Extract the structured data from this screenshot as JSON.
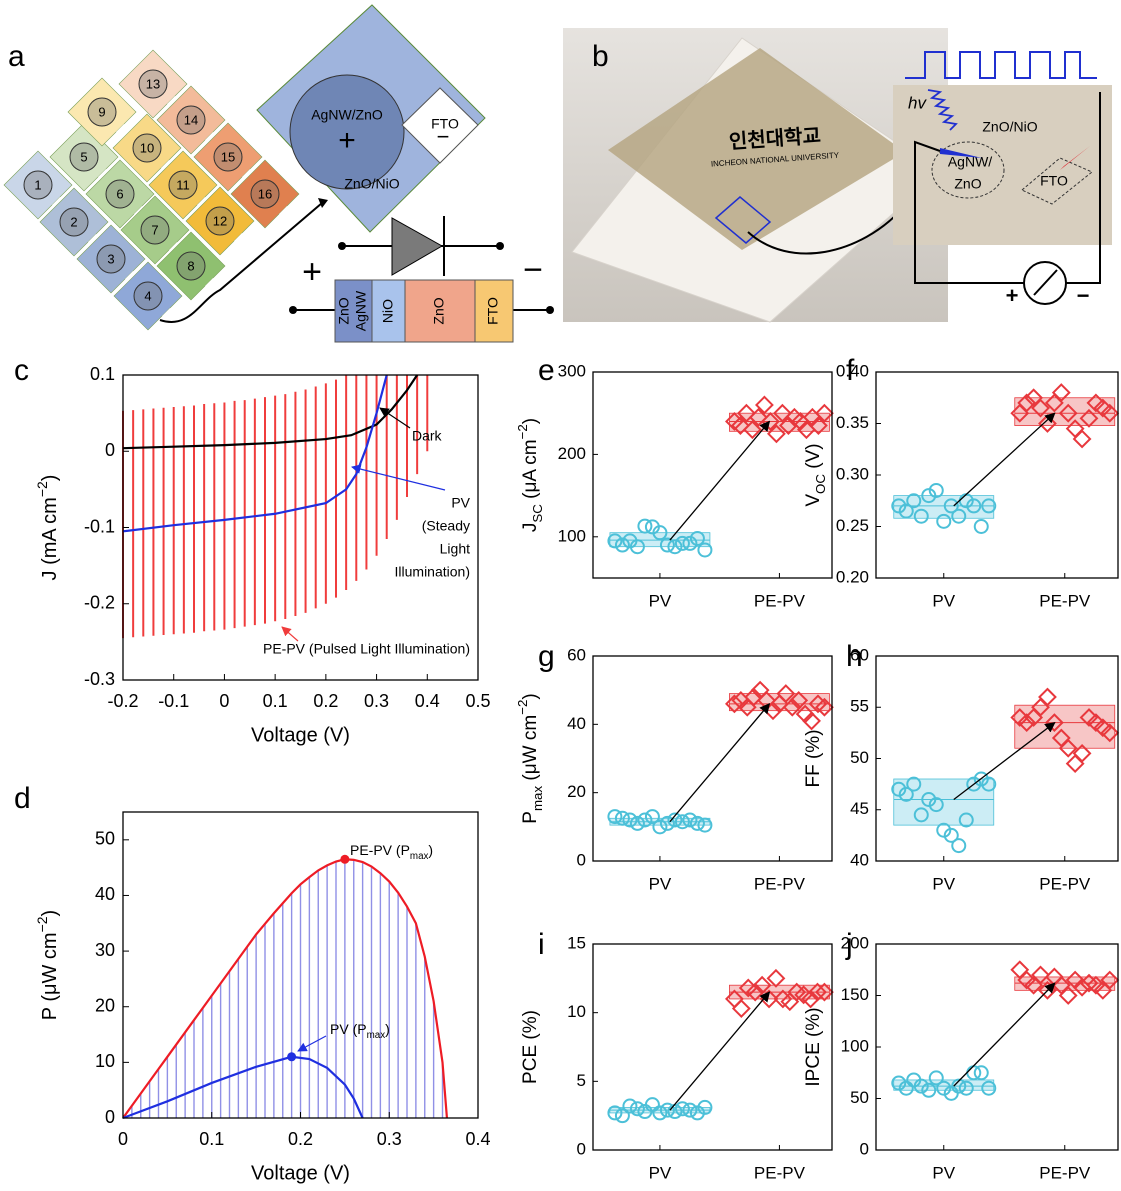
{
  "panel_a": {
    "label": "a",
    "cells": [
      "1",
      "2",
      "3",
      "4",
      "5",
      "6",
      "7",
      "8",
      "9",
      "10",
      "11",
      "12",
      "13",
      "14",
      "15",
      "16"
    ],
    "zoom": {
      "electrode": "AgNW/ZnO",
      "electrode_sign": "+",
      "contact": "FTO",
      "contact_sign": "−",
      "layer": "ZnO/NiO"
    },
    "device": {
      "anode": "+",
      "cathode": "−",
      "layers": [
        [
          "ZnO",
          "AgNW"
        ],
        "NiO",
        "ZnO",
        "FTO"
      ]
    }
  },
  "panel_b": {
    "label": "b",
    "logo": "인천대학교",
    "logo_sub": "INCHEON NATIONAL UNIVERSITY",
    "inset": {
      "light": "hv",
      "layer": "ZnO/NiO",
      "electrode": [
        "AgNW/",
        "ZnO"
      ],
      "contact": "FTO"
    },
    "meter": {
      "plus": "+",
      "minus": "−"
    }
  },
  "chart_data": [
    {
      "type": "line",
      "panel": "c",
      "xlabel": "Voltage (V)",
      "ylabel": [
        "J (mA cm",
        "−2",
        ")"
      ],
      "xlim": [
        -0.2,
        0.5
      ],
      "ylim": [
        -0.3,
        0.1
      ],
      "xticks": [
        -0.2,
        -0.1,
        0,
        0.1,
        0.2,
        0.3,
        0.4,
        0.5
      ],
      "yticks": [
        -0.3,
        -0.2,
        -0.1,
        0,
        0.1
      ],
      "bars": {
        "label": "PE-PV (Pulsed Light Illumination)",
        "color": "#f03c3c",
        "x": [
          -0.2,
          -0.18,
          -0.16,
          -0.14,
          -0.12,
          -0.1,
          -0.08,
          -0.06,
          -0.04,
          -0.02,
          0,
          0.02,
          0.04,
          0.06,
          0.08,
          0.1,
          0.12,
          0.14,
          0.16,
          0.18,
          0.2,
          0.22,
          0.24,
          0.26,
          0.28,
          0.3,
          0.32,
          0.34,
          0.36,
          0.38,
          0.4
        ],
        "low": [
          -0.245,
          -0.244,
          -0.243,
          -0.242,
          -0.241,
          -0.24,
          -0.239,
          -0.238,
          -0.236,
          -0.235,
          -0.234,
          -0.232,
          -0.23,
          -0.228,
          -0.226,
          -0.223,
          -0.22,
          -0.216,
          -0.212,
          -0.206,
          -0.2,
          -0.192,
          -0.182,
          -0.17,
          -0.155,
          -0.137,
          -0.115,
          -0.09,
          -0.06,
          -0.03,
          0
        ],
        "high": [
          0.053,
          0.054,
          0.055,
          0.056,
          0.057,
          0.058,
          0.059,
          0.06,
          0.062,
          0.063,
          0.064,
          0.066,
          0.067,
          0.069,
          0.071,
          0.073,
          0.075,
          0.078,
          0.081,
          0.085,
          0.089,
          0.094,
          0.1,
          0.1,
          0.1,
          0.1,
          0.1,
          0.1,
          0.1,
          0.1,
          0.1
        ]
      },
      "series": [
        {
          "label": "Dark",
          "color": "#000000",
          "x": [
            -0.2,
            -0.1,
            0,
            0.1,
            0.2,
            0.25,
            0.3,
            0.33,
            0.36,
            0.38
          ],
          "values": [
            0.004,
            0.006,
            0.008,
            0.011,
            0.016,
            0.021,
            0.035,
            0.055,
            0.08,
            0.1
          ]
        },
        {
          "label": [
            "PV",
            "(Steady",
            "Light",
            "Illumination)"
          ],
          "color": "#1f2fe0",
          "x": [
            -0.2,
            -0.1,
            0,
            0.1,
            0.2,
            0.24,
            0.26,
            0.28,
            0.3,
            0.32
          ],
          "values": [
            -0.105,
            -0.097,
            -0.09,
            -0.082,
            -0.068,
            -0.05,
            -0.03,
            0.005,
            0.05,
            0.1
          ]
        }
      ]
    },
    {
      "type": "line",
      "panel": "d",
      "xlabel": "Voltage (V)",
      "ylabel": [
        "P (μW cm",
        "−2",
        ")"
      ],
      "xlim": [
        0,
        0.4
      ],
      "ylim": [
        0,
        55
      ],
      "xticks": [
        0,
        0.1,
        0.2,
        0.3,
        0.4
      ],
      "yticks": [
        0,
        10,
        20,
        30,
        40,
        50
      ],
      "max_marker": true,
      "series": [
        {
          "label": [
            "PE-PV (P",
            "max",
            ")"
          ],
          "color": "#ee1c25",
          "fill_color": "#9090e6",
          "x": [
            0,
            0.01,
            0.02,
            0.03,
            0.04,
            0.05,
            0.06,
            0.07,
            0.08,
            0.09,
            0.1,
            0.11,
            0.12,
            0.13,
            0.14,
            0.15,
            0.16,
            0.17,
            0.18,
            0.19,
            0.2,
            0.21,
            0.22,
            0.23,
            0.24,
            0.25,
            0.26,
            0.27,
            0.28,
            0.29,
            0.3,
            0.31,
            0.32,
            0.33,
            0.34,
            0.35,
            0.36,
            0.365
          ],
          "values": [
            0,
            2.2,
            4.4,
            6.6,
            8.8,
            11,
            13.2,
            15.4,
            17.6,
            19.8,
            22,
            24.2,
            26.4,
            28.6,
            30.8,
            33,
            34.9,
            36.8,
            38.6,
            40.4,
            42,
            43.3,
            44.5,
            45.4,
            46.1,
            46.5,
            46.4,
            46,
            45.2,
            44,
            42.5,
            40.5,
            38,
            35,
            29,
            21,
            10,
            0
          ]
        },
        {
          "label": [
            "PV (P",
            "max",
            ")"
          ],
          "color": "#1f2fe0",
          "x": [
            0,
            0.05,
            0.1,
            0.15,
            0.19,
            0.21,
            0.23,
            0.25,
            0.26,
            0.27
          ],
          "values": [
            0,
            3,
            6.3,
            9.2,
            11,
            10.6,
            9,
            6,
            3.5,
            0
          ]
        }
      ]
    },
    {
      "type": "box",
      "panel": "e",
      "ylabel": [
        "J",
        "SC",
        " (μA cm",
        "−2",
        ")"
      ],
      "categories": [
        "PV",
        "PE-PV"
      ],
      "ylim": [
        50,
        300
      ],
      "yticks": [
        100,
        200,
        300
      ],
      "groups": [
        {
          "marker": "circle",
          "color": "#4cc0d8",
          "fill": "#bfe8f3",
          "values": [
            95,
            90,
            95,
            88,
            113,
            112,
            105,
            90,
            88,
            92,
            92,
            98,
            84
          ],
          "box": [
            88,
            105
          ],
          "mean": 96
        },
        {
          "marker": "diamond",
          "color": "#e8383d",
          "fill": "#f5b8b8",
          "values": [
            240,
            235,
            250,
            230,
            245,
            260,
            240,
            225,
            250,
            235,
            245,
            240,
            230,
            245,
            235,
            250
          ],
          "box": [
            228,
            250
          ],
          "mean": 240
        }
      ]
    },
    {
      "type": "box",
      "panel": "f",
      "ylabel": [
        "V",
        "OC",
        " (V)"
      ],
      "categories": [
        "PV",
        "PE-PV"
      ],
      "ylim": [
        0.2,
        0.4
      ],
      "yticks": [
        {
          "value": 0.2,
          "label": "0.20"
        },
        0.25,
        {
          "value": 0.3,
          "label": "0.30"
        },
        0.35,
        {
          "value": 0.4,
          "label": "0.40"
        }
      ],
      "groups": [
        {
          "marker": "circle",
          "color": "#4cc0d8",
          "fill": "#bfe8f3",
          "values": [
            0.27,
            0.265,
            0.275,
            0.26,
            0.28,
            0.285,
            0.255,
            0.27,
            0.26,
            0.275,
            0.27,
            0.25,
            0.27
          ],
          "box": [
            0.258,
            0.28
          ],
          "mean": 0.27
        },
        {
          "marker": "diamond",
          "color": "#e8383d",
          "fill": "#f5b8b8",
          "values": [
            0.36,
            0.37,
            0.375,
            0.365,
            0.35,
            0.37,
            0.38,
            0.36,
            0.345,
            0.335,
            0.355,
            0.37,
            0.365,
            0.36
          ],
          "box": [
            0.348,
            0.375
          ],
          "mean": 0.36
        }
      ]
    },
    {
      "type": "box",
      "panel": "g",
      "ylabel": [
        "P",
        "max",
        " (μW cm",
        "−2",
        ")"
      ],
      "categories": [
        "PV",
        "PE-PV"
      ],
      "ylim": [
        0,
        60
      ],
      "yticks": [
        0,
        20,
        40,
        60
      ],
      "groups": [
        {
          "marker": "circle",
          "color": "#4cc0d8",
          "fill": "#bfe8f3",
          "values": [
            13,
            12.5,
            12,
            11,
            12,
            13,
            10,
            11,
            12,
            11.5,
            12,
            11,
            10.5
          ],
          "box": [
            10.5,
            12.5
          ],
          "mean": 11.5
        },
        {
          "marker": "diamond",
          "color": "#e8383d",
          "fill": "#f5b8b8",
          "values": [
            46,
            47,
            45,
            48,
            50,
            47,
            44,
            46,
            49,
            45,
            47,
            43,
            41,
            46,
            45
          ],
          "box": [
            44,
            49
          ],
          "mean": 46
        }
      ]
    },
    {
      "type": "box",
      "panel": "h",
      "ylabel": [
        "FF (%)"
      ],
      "categories": [
        "PV",
        "PE-PV"
      ],
      "ylim": [
        40,
        60
      ],
      "yticks": [
        40,
        45,
        50,
        55,
        60
      ],
      "groups": [
        {
          "marker": "circle",
          "color": "#4cc0d8",
          "fill": "#bfe8f3",
          "values": [
            47,
            46.5,
            47.5,
            44.5,
            46,
            45.5,
            43,
            42.5,
            41.5,
            44,
            47.5,
            48,
            47.5
          ],
          "box": [
            43.5,
            48
          ],
          "mean": 46
        },
        {
          "marker": "diamond",
          "color": "#e8383d",
          "fill": "#f5b8b8",
          "values": [
            54,
            53.5,
            54,
            55,
            56,
            53.5,
            52,
            51,
            49.5,
            50.5,
            54,
            53.5,
            53,
            52.5
          ],
          "box": [
            51,
            55.2
          ],
          "mean": 53.5
        }
      ]
    },
    {
      "type": "box",
      "panel": "i",
      "ylabel": [
        "PCE (%)"
      ],
      "categories": [
        "PV",
        "PE-PV"
      ],
      "ylim": [
        0,
        15
      ],
      "yticks": [
        0,
        5,
        10,
        15
      ],
      "groups": [
        {
          "marker": "circle",
          "color": "#4cc0d8",
          "fill": "#bfe8f3",
          "values": [
            2.7,
            2.5,
            3.2,
            3,
            2.8,
            3.3,
            2.7,
            2.9,
            2.8,
            3,
            2.9,
            2.7,
            3.1
          ],
          "box": [
            2.7,
            3.1
          ],
          "mean": 2.9
        },
        {
          "marker": "diamond",
          "color": "#e8383d",
          "fill": "#f5b8b8",
          "values": [
            11,
            10.3,
            11.8,
            11.5,
            12,
            11,
            12.5,
            11,
            10.8,
            11.5,
            11.3,
            11,
            11.5,
            11.5
          ],
          "box": [
            11,
            12
          ],
          "mean": 11.5
        }
      ]
    },
    {
      "type": "box",
      "panel": "j",
      "ylabel": [
        "IPCE (%)"
      ],
      "categories": [
        "PV",
        "PE-PV"
      ],
      "ylim": [
        0,
        200
      ],
      "yticks": [
        0,
        50,
        100,
        150,
        200
      ],
      "groups": [
        {
          "marker": "circle",
          "color": "#4cc0d8",
          "fill": "#bfe8f3",
          "values": [
            65,
            60,
            68,
            62,
            58,
            70,
            60,
            55,
            62,
            60,
            75,
            75,
            60
          ],
          "box": [
            58,
            68
          ],
          "mean": 62
        },
        {
          "marker": "diamond",
          "color": "#e8383d",
          "fill": "#f5b8b8",
          "values": [
            175,
            165,
            160,
            170,
            155,
            168,
            160,
            150,
            165,
            158,
            162,
            160,
            155,
            165
          ],
          "box": [
            155,
            168
          ],
          "mean": 162
        }
      ]
    }
  ]
}
